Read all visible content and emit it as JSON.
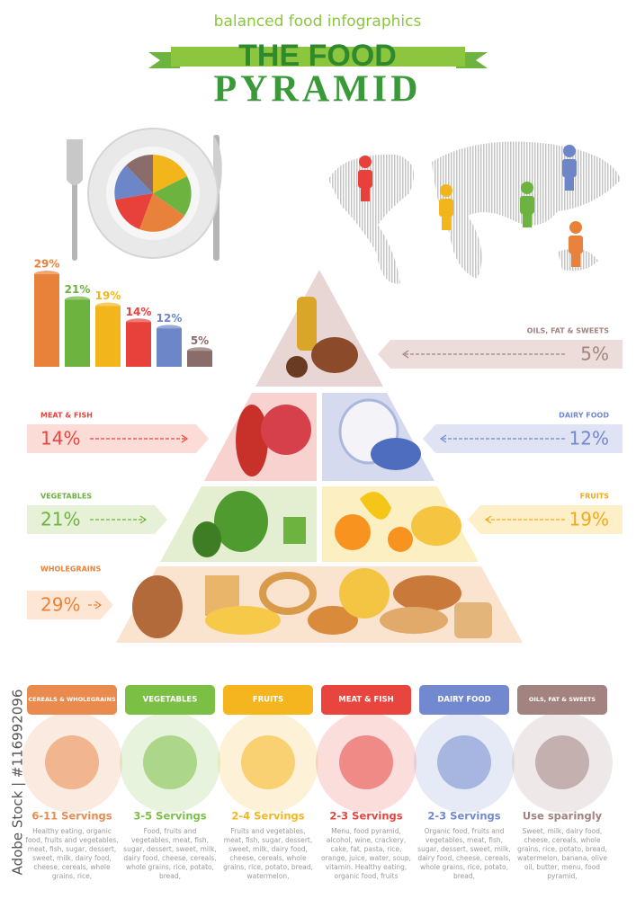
{
  "header": {
    "subtitle": "balanced food infographics",
    "title_line1": "THE FOOD",
    "title_line2": "PYRAMID"
  },
  "chart_data": {
    "type": "bar",
    "categories": [
      null,
      null,
      null,
      null,
      null,
      null
    ],
    "values": [
      29,
      21,
      19,
      14,
      12,
      5
    ],
    "value_labels": [
      "29%",
      "21%",
      "19%",
      "14%",
      "12%",
      "5%"
    ],
    "colors": [
      "#e8823a",
      "#6cb33f",
      "#f2b61c",
      "#e8413c",
      "#6d86c7",
      "#8a6d6a"
    ]
  },
  "pyramid": {
    "tiers": [
      {
        "label": "OILS, FAT & SWEETS",
        "percent": "5%"
      },
      {
        "label": "MEAT & FISH",
        "percent": "14%"
      },
      {
        "label": "DAIRY FOOD",
        "percent": "12%"
      },
      {
        "label": "VEGETABLES",
        "percent": "21%"
      },
      {
        "label": "FRUITS",
        "percent": "19%"
      },
      {
        "label": "WHOLEGRAINS",
        "percent": "29%"
      }
    ]
  },
  "groups": [
    {
      "label": "CEREALS & WHOLEGRAINS",
      "servings": "6-11 Servings",
      "color": "#e98a4f",
      "description": "Healthy eating, organic food, fruits and vegetables, meat, fish, sugar, dessert, sweet, milk, dairy food, cheese, cereals, whole grains, rice,"
    },
    {
      "label": "VEGETABLES",
      "servings": "3-5 Servings",
      "color": "#7bbf45",
      "description": "Food, fruits and vegetables, meat, fish, sugar, dessert, sweet, milk, dairy food, cheese, cereals, whole grains, rice, potato, bread,"
    },
    {
      "label": "FRUITS",
      "servings": "2-4 Servings",
      "color": "#f5b51f",
      "description": "Fruits and vegetables, meat, fish, sugar, dessert, sweet, milk, dairy food, cheese, cereals, whole grains, rice, potato, bread, watermelon,"
    },
    {
      "label": "MEAT & FISH",
      "servings": "2-3 Servings",
      "color": "#e8453f",
      "description": "Menu, food pyramid, alcohol, wine, crackery, cake, fat, pasta, rice, orange, juice, water, soup, vitamin. Healthy eating, organic food, fruits"
    },
    {
      "label": "DAIRY FOOD",
      "servings": "2-3 Servings",
      "color": "#7289cf",
      "description": "Organic food, fruits and vegetables, meat, fish, sugar, dessert, sweet, milk, dairy food, cheese, cereals, whole grains, rice, potato, bread,"
    },
    {
      "label": "OILS, FAT & SWEETS",
      "servings": "Use sparingly",
      "color": "#a3837f",
      "description": "Sweet, milk, dairy food, cheese, cereals, whole grains, rice, potato, bread, watermelon, banana, olive oil, butter, menu, food pyramid,"
    }
  ],
  "watermark": "Adobe Stock | #116992096"
}
